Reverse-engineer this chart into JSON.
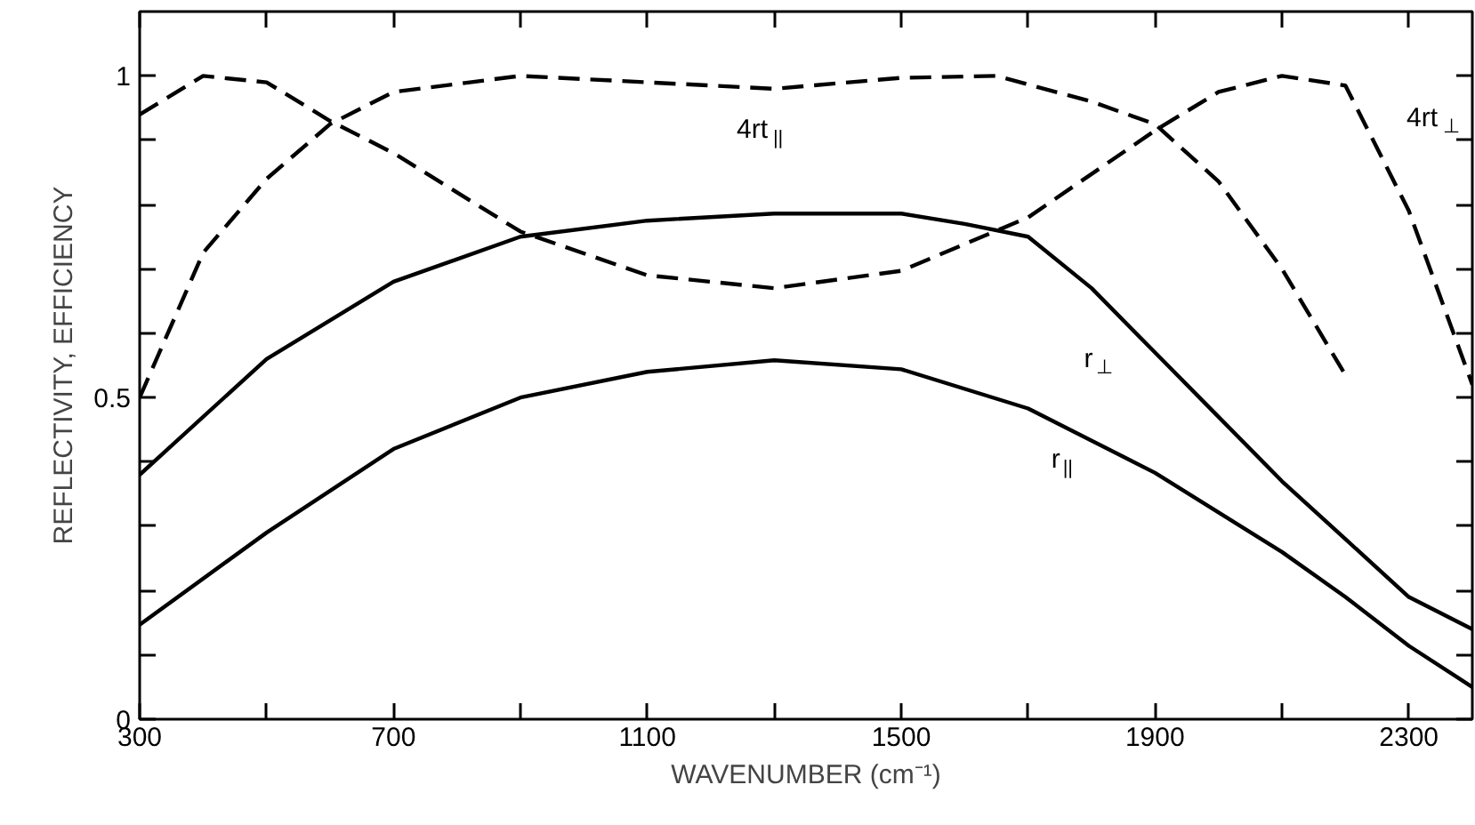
{
  "chart_data": {
    "type": "line",
    "xlabel": "WAVENUMBER (cm⁻¹)",
    "ylabel": "REFLECTIVITY, EFFICIENCY",
    "xlim": [
      300,
      2400
    ],
    "ylim": [
      0,
      1.1
    ],
    "xticks": [
      300,
      {
        "value": 500,
        "label": null
      },
      700,
      {
        "value": 900,
        "label": null
      },
      1100,
      {
        "value": 1300,
        "label": null
      },
      1500,
      {
        "value": 1700,
        "label": null
      },
      1900,
      {
        "value": 2100,
        "label": null
      },
      2300
    ],
    "yticks": [
      0,
      {
        "value": 0.1,
        "label": null
      },
      {
        "value": 0.2,
        "label": null
      },
      {
        "value": 0.3,
        "label": null
      },
      {
        "value": 0.4,
        "label": null
      },
      0.5,
      {
        "value": 0.6,
        "label": null
      },
      {
        "value": 0.7,
        "label": null
      },
      {
        "value": 0.8,
        "label": null
      },
      {
        "value": 0.9,
        "label": null
      },
      1
    ],
    "grid": false,
    "series": [
      {
        "color": "#000000",
        "line_style": "solid",
        "x": [
          300,
          500,
          700,
          900,
          1100,
          1300,
          1500,
          1600,
          1700,
          1800,
          1900,
          2000,
          2100,
          2200,
          2300,
          2400
        ],
        "values": [
          0.38,
          0.56,
          0.68,
          0.75,
          0.775,
          0.786,
          0.786,
          0.77,
          0.75,
          0.67,
          0.57,
          0.47,
          0.37,
          0.28,
          0.19,
          0.14
        ]
      },
      {
        "color": "#000000",
        "line_style": "solid",
        "x": [
          300,
          500,
          700,
          900,
          1100,
          1300,
          1500,
          1700,
          1900,
          2100,
          2200,
          2300,
          2400
        ],
        "values": [
          0.147,
          0.29,
          0.42,
          0.5,
          0.54,
          0.558,
          0.544,
          0.483,
          0.383,
          0.26,
          0.19,
          0.114,
          0.05
        ]
      },
      {
        "color": "#000000",
        "line_style": "dashed",
        "x": [
          300,
          400,
          500,
          600,
          700,
          900,
          1100,
          1300,
          1500,
          1650,
          1800,
          1900,
          2000,
          2100,
          2200
        ],
        "values": [
          0.5,
          0.725,
          0.84,
          0.925,
          0.975,
          1.0,
          0.99,
          0.98,
          0.997,
          1.0,
          0.96,
          0.925,
          0.836,
          0.7,
          0.535
        ]
      },
      {
        "color": "#000000",
        "line_style": "dashed",
        "x": [
          300,
          400,
          500,
          600,
          700,
          900,
          1100,
          1300,
          1500,
          1700,
          1900,
          2000,
          2100,
          2200,
          2300,
          2400
        ],
        "values": [
          0.94,
          1.0,
          0.99,
          0.93,
          0.88,
          0.758,
          0.69,
          0.67,
          0.697,
          0.78,
          0.915,
          0.975,
          1.0,
          0.985,
          0.79,
          0.52
        ]
      }
    ],
    "annotations": [
      "r$_{⊥}$",
      "r$_{||}$",
      "4rt$_{||}$",
      "4rt$_{⊥}$"
    ]
  }
}
